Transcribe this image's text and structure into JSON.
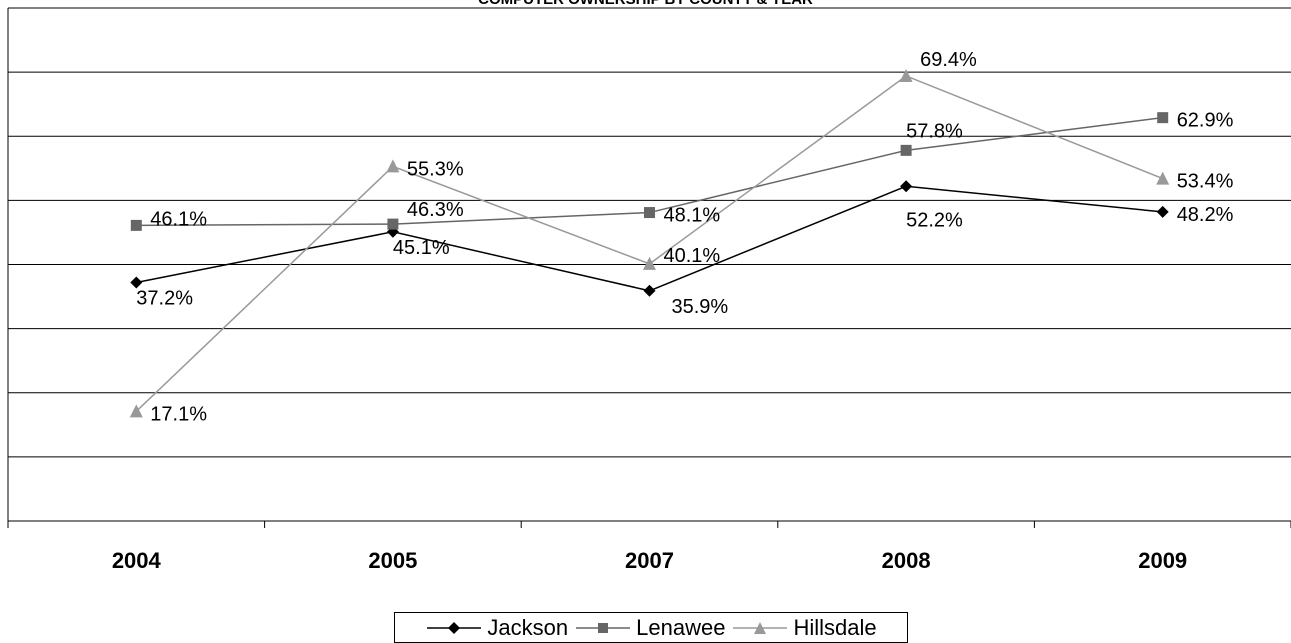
{
  "chart_data": {
    "type": "line",
    "title": "COMPUTER OWNERSHIP BY COUNTY & YEAR",
    "categories": [
      "2004",
      "2005",
      "2007",
      "2008",
      "2009"
    ],
    "series": [
      {
        "name": "Jackson",
        "values": [
          37.2,
          45.1,
          35.9,
          52.2,
          48.2
        ],
        "labels": [
          "37.2%",
          "45.1%",
          "35.9%",
          "52.2%",
          "48.2%"
        ],
        "color": "#000000",
        "marker": "diamond"
      },
      {
        "name": "Lenawee",
        "values": [
          46.1,
          46.3,
          48.1,
          57.8,
          62.9
        ],
        "labels": [
          "46.1%",
          "46.3%",
          "48.1%",
          "57.8%",
          "62.9%"
        ],
        "color": "#666666",
        "marker": "square"
      },
      {
        "name": "Hillsdale",
        "values": [
          17.1,
          55.3,
          40.1,
          69.4,
          53.4
        ],
        "labels": [
          "17.1%",
          "55.3%",
          "40.1%",
          "69.4%",
          "53.4%"
        ],
        "color": "#999999",
        "marker": "triangle"
      }
    ],
    "ylim": [
      0,
      80
    ],
    "grid": true,
    "legend_position": "bottom"
  }
}
